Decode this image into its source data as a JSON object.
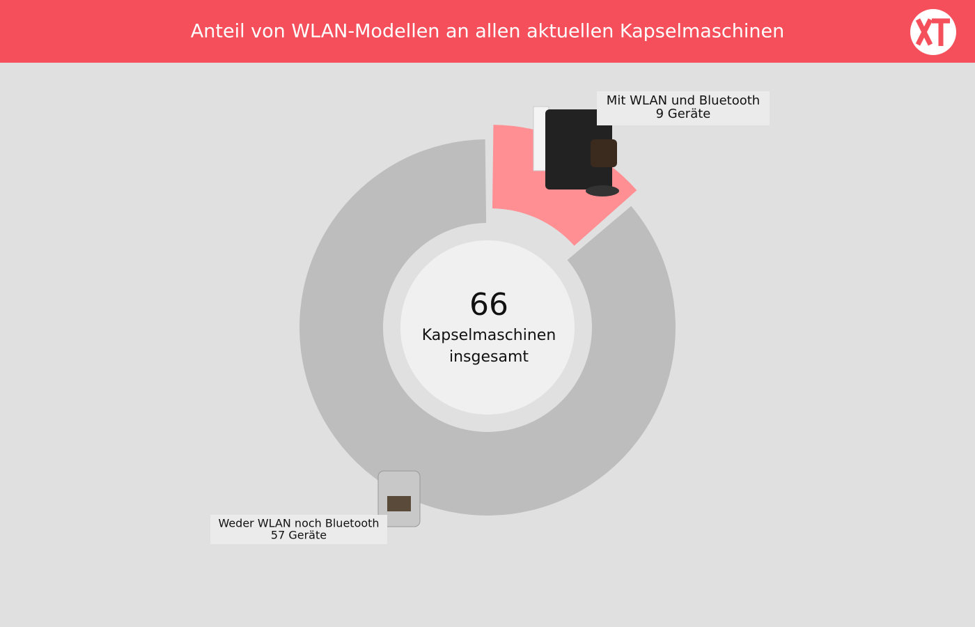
{
  "chart_data": {
    "type": "donut",
    "title": "Anteil von WLAN-Modellen an allen aktuellen Kapselmaschinen",
    "center_value": 66,
    "center_label": [
      "Kapselmaschinen",
      "insgesamt"
    ],
    "categories": [
      "Mit WLAN und Bluetooth",
      "Weder WLAN noch Bluetooth"
    ],
    "values": [
      9,
      57
    ],
    "value_labels": [
      "9 Geräte",
      "57 Geräte"
    ],
    "colors": [
      "#ff8f93",
      "#bdbdbd"
    ]
  }
}
